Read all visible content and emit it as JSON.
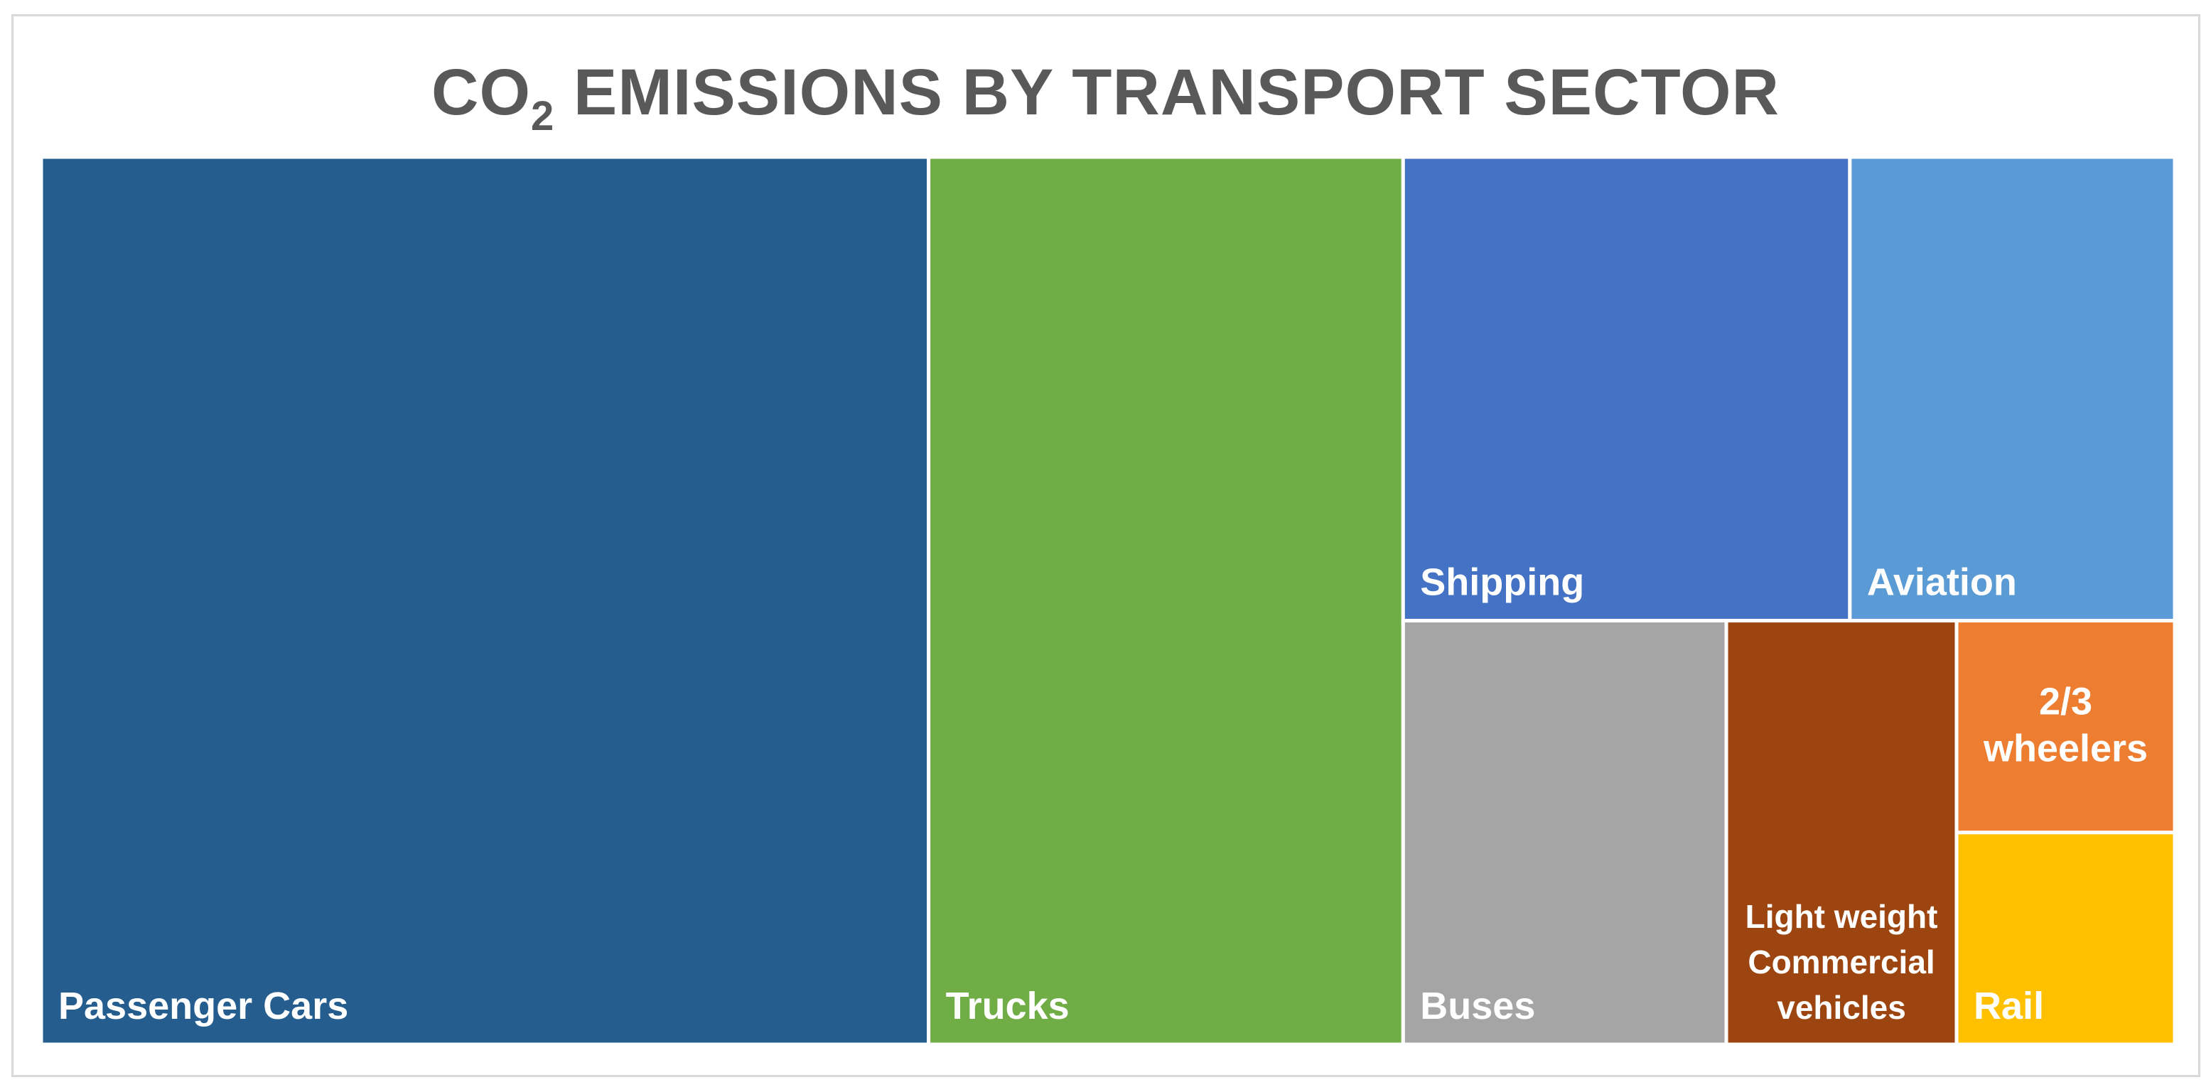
{
  "chart_data": {
    "type": "treemap",
    "title_main": "CO",
    "title_sub": "2",
    "title_rest": " EMISSIONS BY TRANSPORT SECTOR",
    "items": [
      {
        "label": [
          "Passenger Cars"
        ],
        "value": 46.0,
        "color": "#255E8E",
        "align": "left"
      },
      {
        "label": [
          "Trucks"
        ],
        "value": 24.6,
        "color": "#70AD47",
        "align": "left"
      },
      {
        "label": [
          "Shipping"
        ],
        "value": 12.1,
        "color": "#4472C4",
        "align": "left"
      },
      {
        "label": [
          "Aviation"
        ],
        "value": 8.8,
        "color": "#5B9BD5",
        "align": "left"
      },
      {
        "label": [
          "Buses"
        ],
        "value": 8.0,
        "color": "#A5A5A5",
        "align": "left"
      },
      {
        "label": [
          "Light weight",
          "Commercial",
          "vehicles"
        ],
        "value": 5.7,
        "color": "#9C4510",
        "align": "center"
      },
      {
        "label": [
          "2/3",
          "wheelers"
        ],
        "value": 2.7,
        "color": "#ED7D31",
        "align": "center"
      },
      {
        "label": [
          "Rail"
        ],
        "value": 2.7,
        "color": "#FFC000",
        "align": "left"
      }
    ]
  }
}
